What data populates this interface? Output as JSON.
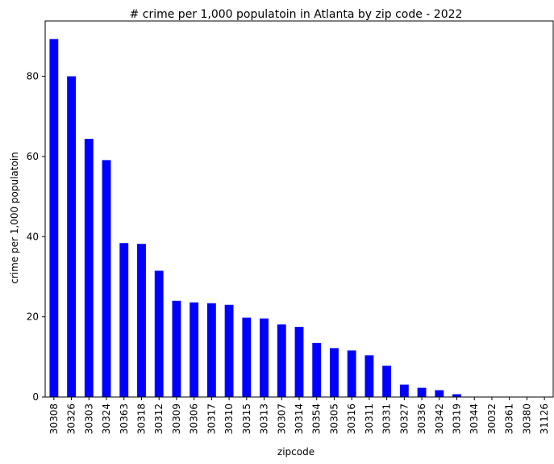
{
  "chart_data": {
    "type": "bar",
    "title": "# crime per 1,000 populatoin in Atlanta by zip code - 2022",
    "xlabel": "zipcode",
    "ylabel": "crime per 1,000 populatoin",
    "categories": [
      "30308",
      "30326",
      "30303",
      "30324",
      "30363",
      "30318",
      "30312",
      "30309",
      "30306",
      "30317",
      "30310",
      "30315",
      "30313",
      "30307",
      "30314",
      "30354",
      "30305",
      "30316",
      "30311",
      "30331",
      "30327",
      "30336",
      "30342",
      "30319",
      "30344",
      "30032",
      "30361",
      "30380",
      "31126"
    ],
    "values": [
      89.3,
      80.0,
      64.4,
      59.1,
      38.4,
      38.2,
      31.5,
      24.0,
      23.6,
      23.4,
      23.0,
      19.8,
      19.6,
      18.1,
      17.5,
      13.5,
      12.2,
      11.6,
      10.4,
      7.8,
      3.1,
      2.3,
      1.7,
      0.7,
      0.1,
      0.05,
      0.05,
      0.05,
      0.05
    ],
    "yticks": [
      0,
      20,
      40,
      60,
      80
    ],
    "ylim": [
      0,
      93.8
    ],
    "grid": false,
    "bar_color": "#0000ff"
  }
}
